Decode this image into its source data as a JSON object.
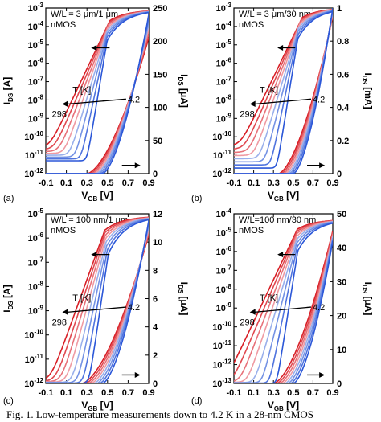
{
  "caption": "Fig. 1. Low-temperature measurements down to 4.2 K in a 28-nm CMOS",
  "colors": {
    "cold": "#2b57d8",
    "warm": "#d81f26",
    "axis": "#000000"
  },
  "chart_data": [
    {
      "type": "line",
      "panel": "(a)",
      "label": "W/L = 3 μm/1 μm",
      "device": "nMOS",
      "xlabel": "V",
      "xlabel_sub": "GB",
      "xlabel_unit": " [V]",
      "ylabel_left": "I",
      "ylabel_left_sub": "DS",
      "ylabel_left_unit": " [A]",
      "ylabel_right": "I",
      "ylabel_right_sub": "DS",
      "ylabel_right_unit": " [μA]",
      "xlim": [
        -0.1,
        0.9
      ],
      "ylim_left_exp": [
        -12,
        -3
      ],
      "ylim_right": [
        0,
        250
      ],
      "xticks": [
        "-0.1",
        "0.1",
        "0.3",
        "0.5",
        "0.7",
        "0.9"
      ],
      "yticks_right": [
        "0",
        "50",
        "100",
        "150",
        "200",
        "250"
      ],
      "temperature_label": "T [K]",
      "t_warm": "298",
      "t_cold": "4.2",
      "vth_cold": 0.45,
      "vth_warm": 0.3,
      "ss_cold": 0.03,
      "ss_warm": 0.085,
      "log_ioff": [
        -10.6,
        -11.3
      ],
      "log_imax": -3.1,
      "imax_lin_warm": 205,
      "imax_lin_cold": 240
    },
    {
      "type": "line",
      "panel": "(b)",
      "label": "W/L = 3 μm/30 nm",
      "device": "nMOS",
      "xlabel": "V",
      "xlabel_sub": "GB",
      "xlabel_unit": " [V]",
      "ylabel_left": "",
      "ylabel_left_sub": "",
      "ylabel_left_unit": "",
      "ylabel_right": "I",
      "ylabel_right_sub": "DS",
      "ylabel_right_unit": " [mA]",
      "xlim": [
        -0.1,
        0.9
      ],
      "ylim_left_exp": [
        -12,
        -3
      ],
      "ylim_right": [
        0,
        1
      ],
      "xticks": [
        "-0.1",
        "0.1",
        "0.3",
        "0.5",
        "0.7",
        "0.9"
      ],
      "yticks_right": [
        "0",
        "0.2",
        "0.4",
        "0.6",
        "0.8",
        "1"
      ],
      "temperature_label": "T [K]",
      "t_warm": "298",
      "t_cold": "4.2",
      "vth_cold": 0.5,
      "vth_warm": 0.35,
      "ss_cold": 0.03,
      "ss_warm": 0.09,
      "log_ioff": [
        -10.5,
        -11.7
      ],
      "log_imax": -3.0,
      "imax_lin_warm": 0.95,
      "imax_lin_cold": 1.0
    },
    {
      "type": "line",
      "panel": "(c)",
      "label": "W/L = 100 nm/1 μm",
      "device": "nMOS",
      "xlabel": "V",
      "xlabel_sub": "GB",
      "xlabel_unit": " [V]",
      "ylabel_left": "I",
      "ylabel_left_sub": "DS",
      "ylabel_left_unit": " [A]",
      "ylabel_right": "I",
      "ylabel_right_sub": "DS",
      "ylabel_right_unit": " [μA]",
      "xlim": [
        -0.1,
        0.9
      ],
      "ylim_left_exp": [
        -12,
        -5
      ],
      "ylim_right": [
        0,
        12
      ],
      "xticks": [
        "-0.1",
        "0.1",
        "0.3",
        "0.5",
        "0.7",
        "0.9"
      ],
      "yticks_right": [
        "0",
        "2",
        "4",
        "6",
        "8",
        "10",
        "12"
      ],
      "temperature_label": "T [K]",
      "t_warm": "298",
      "t_cold": "4.2",
      "vth_cold": 0.45,
      "vth_warm": 0.25,
      "ss_cold": 0.035,
      "ss_warm": 0.085,
      "log_ioff": [
        -11.9,
        -12.0
      ],
      "log_imax": -5.1,
      "imax_lin_warm": 10.5,
      "imax_lin_cold": 11.5
    },
    {
      "type": "line",
      "panel": "(d)",
      "label": "W/L=100 nm/30 nm",
      "device": "nMOS",
      "xlabel": "V",
      "xlabel_sub": "GB",
      "xlabel_unit": " [V]",
      "ylabel_left": "",
      "ylabel_left_sub": "",
      "ylabel_left_unit": "",
      "ylabel_right": "I",
      "ylabel_right_sub": "DS",
      "ylabel_right_unit": " [μA]",
      "xlim": [
        -0.1,
        0.9
      ],
      "ylim_left_exp": [
        -13,
        -4
      ],
      "ylim_right": [
        0,
        50
      ],
      "xticks": [
        "-0.1",
        "0.1",
        "0.3",
        "0.5",
        "0.7",
        "0.9"
      ],
      "yticks_right": [
        "0",
        "10",
        "20",
        "30",
        "40",
        "50"
      ],
      "temperature_label": "T [K]",
      "t_warm": "298",
      "t_cold": "4.2",
      "vth_cold": 0.5,
      "vth_warm": 0.3,
      "ss_cold": 0.03,
      "ss_warm": 0.09,
      "log_ioff": [
        -12.9,
        -13.0
      ],
      "log_imax": -4.3,
      "imax_lin_warm": 45,
      "imax_lin_cold": 42
    }
  ]
}
